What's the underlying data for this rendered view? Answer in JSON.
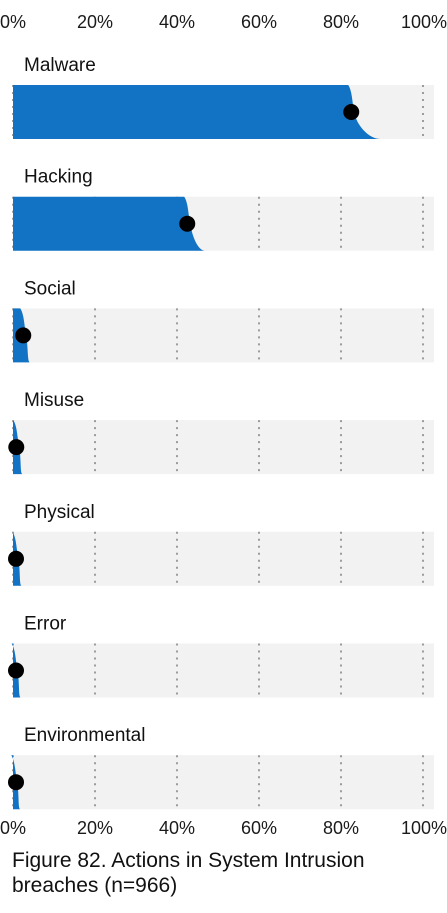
{
  "figure": {
    "caption": "Figure 82. Actions in System Intrusion breaches (n=966)"
  },
  "chart_data": {
    "type": "bar",
    "orientation": "horizontal",
    "categories": [
      "Malware",
      "Hacking",
      "Social",
      "Misuse",
      "Physical",
      "Error",
      "Environmental"
    ],
    "values": [
      82.5,
      42.5,
      2.5,
      0.8,
      0.6,
      0.4,
      0.3
    ],
    "units": "%",
    "xlim": [
      0,
      100
    ],
    "x_ticks": [
      "0%",
      "20%",
      "40%",
      "60%",
      "80%",
      "100%"
    ],
    "x_tick_values": [
      0,
      20,
      40,
      60,
      80,
      100
    ],
    "grid": true,
    "legend": "none",
    "colors": {
      "bar": "#1273c5",
      "track": "#f2f2f2",
      "point": "#000000",
      "grid": "#777777"
    }
  }
}
